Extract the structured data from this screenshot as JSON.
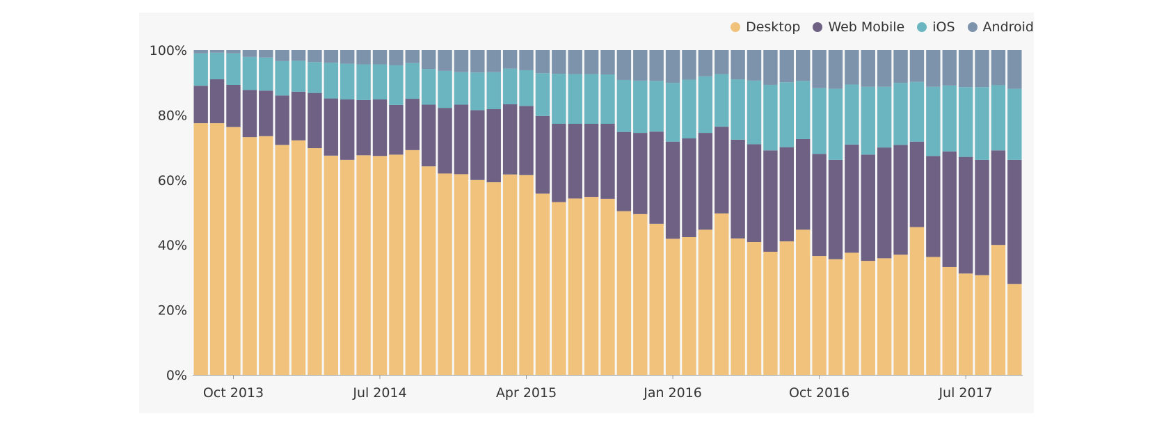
{
  "chart_data": {
    "type": "bar",
    "stacked": "percent",
    "series": [
      {
        "name": "Desktop",
        "color": "#f0c27b",
        "values": [
          77.5,
          77.5,
          76.3,
          73.2,
          73.5,
          70.8,
          72.2,
          69.8,
          67.5,
          66.2,
          67.6,
          67.4,
          67.8,
          69.2,
          64.2,
          62.0,
          61.8,
          60.0,
          59.3,
          61.7,
          61.5,
          55.8,
          53.2,
          54.3,
          54.8,
          54.2,
          50.4,
          49.5,
          46.5,
          41.9,
          42.4,
          44.7,
          49.7,
          42.0,
          40.9,
          37.9,
          41.1,
          44.7,
          36.6,
          35.6,
          37.6,
          35.1,
          35.9,
          37.0,
          45.5,
          36.3,
          33.2,
          31.2,
          30.7,
          40.0,
          28.0
        ]
      },
      {
        "name": "Web Mobile",
        "color": "#6e6183",
        "values": [
          11.5,
          13.5,
          13.0,
          14.5,
          14.0,
          15.2,
          15.0,
          17.0,
          17.6,
          18.6,
          17.0,
          17.4,
          15.3,
          15.8,
          19.0,
          20.2,
          21.4,
          21.5,
          22.5,
          21.6,
          21.3,
          23.9,
          24.1,
          23.0,
          22.5,
          23.1,
          24.4,
          25.0,
          28.4,
          29.9,
          30.4,
          29.8,
          26.7,
          30.4,
          30.1,
          31.2,
          29.0,
          27.9,
          31.4,
          30.6,
          33.3,
          32.7,
          34.1,
          33.8,
          26.3,
          31.1,
          35.6,
          35.9,
          35.5,
          29.1,
          38.2
        ]
      },
      {
        "name": "iOS",
        "color": "#6ab5c0",
        "values": [
          10.0,
          8.2,
          9.7,
          10.2,
          10.2,
          10.6,
          9.5,
          9.5,
          11.0,
          11.0,
          11.0,
          10.8,
          12.2,
          11.0,
          11.0,
          11.4,
          10.0,
          11.6,
          11.4,
          11.0,
          11.0,
          13.2,
          15.4,
          15.3,
          15.3,
          15.2,
          16.0,
          16.1,
          15.6,
          18.1,
          18.1,
          17.4,
          16.2,
          18.6,
          19.6,
          20.2,
          20.0,
          17.9,
          20.3,
          21.9,
          18.5,
          20.9,
          18.7,
          19.1,
          18.4,
          21.3,
          20.3,
          21.5,
          22.4,
          20.1,
          21.9
        ]
      },
      {
        "name": "Android",
        "color": "#7d93ab",
        "values": [
          1.0,
          0.8,
          1.0,
          2.1,
          2.3,
          3.4,
          3.3,
          3.7,
          3.9,
          4.2,
          4.4,
          4.4,
          4.7,
          4.0,
          5.8,
          6.4,
          6.8,
          6.9,
          6.8,
          5.7,
          6.2,
          7.1,
          7.3,
          7.4,
          7.4,
          7.5,
          9.2,
          9.4,
          9.5,
          10.1,
          9.1,
          8.1,
          7.4,
          9.0,
          9.4,
          10.7,
          9.9,
          9.5,
          11.7,
          11.9,
          10.6,
          11.3,
          11.3,
          10.1,
          9.8,
          11.3,
          10.9,
          11.4,
          11.4,
          10.8,
          11.9
        ]
      }
    ],
    "x_tick_labels": [
      "Oct 2013",
      "Jul 2014",
      "Apr 2015",
      "Jan 2016",
      "Oct 2016",
      "Jul 2017"
    ],
    "x_tick_bar_index": [
      2,
      11,
      20,
      29,
      38,
      47
    ],
    "y_tick_labels": [
      "0%",
      "20%",
      "40%",
      "60%",
      "80%",
      "100%"
    ],
    "y_tick_values": [
      0,
      20,
      40,
      60,
      80,
      100
    ],
    "ylim": [
      0,
      100
    ],
    "legend_position": "top-right",
    "grid": false
  }
}
